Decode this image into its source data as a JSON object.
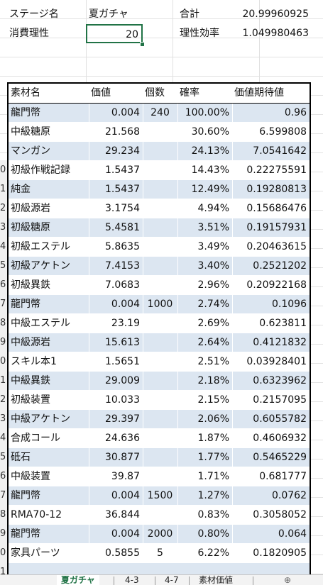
{
  "top": {
    "row1": {
      "label": "ステージ名",
      "value": "夏ガチャ",
      "sum_label": "合計",
      "sum_value": "20.99960925"
    },
    "row2": {
      "label": "消費理性",
      "value": "20",
      "eff_label": "理性効率",
      "eff_value": "1.049980463"
    }
  },
  "row_numbers": [
    "0",
    "1",
    "2",
    "3",
    "4",
    "5",
    "6",
    "7",
    "8",
    "9",
    "0",
    "1",
    "2",
    "3",
    "4",
    "5",
    "6",
    "7",
    "8",
    "9",
    "0",
    "1",
    "2",
    "3",
    "4",
    "5",
    "6",
    "7",
    "8",
    "9"
  ],
  "table": {
    "headers": [
      "素材名",
      "価値",
      "個数",
      "確率",
      "価値期待値"
    ],
    "rows": [
      [
        "龍門幣",
        "0.004",
        "240",
        "100.00%",
        "0.96"
      ],
      [
        "中級糖原",
        "21.568",
        "",
        "30.60%",
        "6.599808"
      ],
      [
        "マンガン",
        "29.234",
        "",
        "24.13%",
        "7.0541642"
      ],
      [
        "初級作戦記録",
        "1.5437",
        "",
        "14.43%",
        "0.22275591"
      ],
      [
        "純金",
        "1.5437",
        "",
        "12.49%",
        "0.19280813"
      ],
      [
        "初級源岩",
        "3.1754",
        "",
        "4.94%",
        "0.15686476"
      ],
      [
        "初級糖原",
        "5.4581",
        "",
        "3.51%",
        "0.19157931"
      ],
      [
        "初級エステル",
        "5.8635",
        "",
        "3.49%",
        "0.20463615"
      ],
      [
        "初級アケトン",
        "7.4153",
        "",
        "3.40%",
        "0.2521202"
      ],
      [
        "初級異鉄",
        "7.0683",
        "",
        "2.96%",
        "0.20922168"
      ],
      [
        "龍門幣",
        "0.004",
        "1000",
        "2.74%",
        "0.1096"
      ],
      [
        "中級エステル",
        "23.19",
        "",
        "2.69%",
        "0.623811"
      ],
      [
        "中級源岩",
        "15.613",
        "",
        "2.64%",
        "0.4121832"
      ],
      [
        "スキル本1",
        "1.5651",
        "",
        "2.51%",
        "0.03928401"
      ],
      [
        "中級異鉄",
        "29.009",
        "",
        "2.18%",
        "0.6323962"
      ],
      [
        "初級装置",
        "10.033",
        "",
        "2.15%",
        "0.2157095"
      ],
      [
        "中級アケトン",
        "29.397",
        "",
        "2.06%",
        "0.6055782"
      ],
      [
        "合成コール",
        "24.636",
        "",
        "1.87%",
        "0.4606932"
      ],
      [
        "砥石",
        "30.877",
        "",
        "1.77%",
        "0.5465229"
      ],
      [
        "中級装置",
        "39.87",
        "",
        "1.71%",
        "0.681777"
      ],
      [
        "龍門幣",
        "0.004",
        "1500",
        "1.27%",
        "0.0762"
      ],
      [
        "RMA70-12",
        "36.844",
        "",
        "0.83%",
        "0.3058052"
      ],
      [
        "龍門幣",
        "0.004",
        "2000",
        "0.80%",
        "0.064"
      ],
      [
        "家具パーツ",
        "0.5855",
        "5",
        "6.22%",
        "0.1820905"
      ]
    ]
  },
  "sheet_tabs": [
    "夏ガチャ",
    "4-3",
    "4-7",
    "素材価値"
  ],
  "colors": {
    "band": "#dce6f1",
    "accent": "#217346"
  }
}
